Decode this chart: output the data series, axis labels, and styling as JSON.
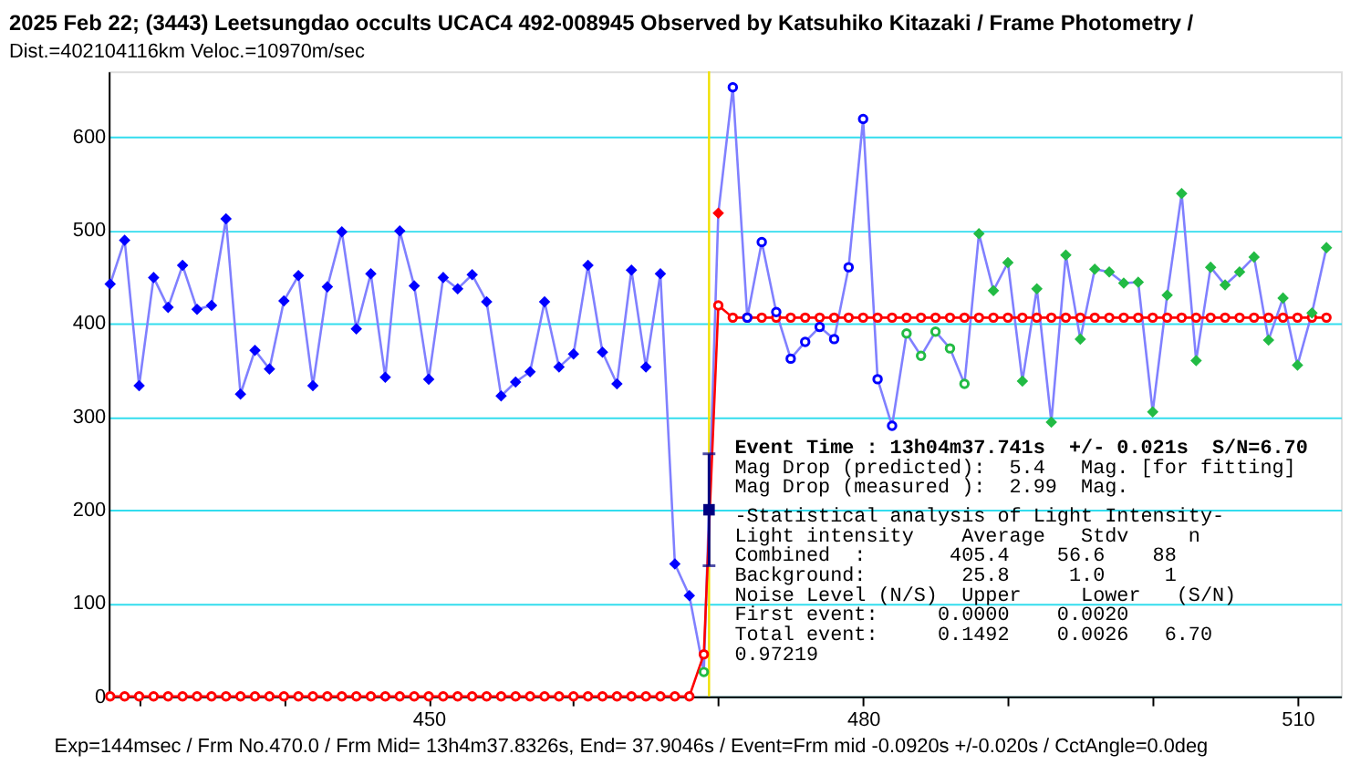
{
  "chart_data": {
    "type": "line",
    "title": "2025 Feb 22; (3443) Leetsungdao occults UCAC4 492-008945 Observed by Katsuhiko Kitazaki / Frame Photometry /",
    "subtitle": "Dist.=402104116km Veloc.=10970m/sec",
    "xlim": [
      427.9,
      513
    ],
    "ylim": [
      0,
      670
    ],
    "xticks": [
      {
        "value": 430,
        "label": null
      },
      {
        "value": 440,
        "label": null
      },
      450,
      {
        "value": 460,
        "label": null
      },
      {
        "value": 470,
        "label": null
      },
      480,
      {
        "value": 490,
        "label": null
      },
      {
        "value": 500,
        "label": null
      },
      510
    ],
    "yticks": [
      0,
      100,
      200,
      300,
      400,
      500,
      600
    ],
    "grid": "y",
    "series": [
      {
        "color": "#8080ff",
        "marker": "none",
        "x": [
          428,
          429,
          430,
          431,
          432,
          433,
          434,
          435,
          436,
          437,
          438,
          439,
          440,
          441,
          442,
          443,
          444,
          445,
          446,
          447,
          448,
          449,
          450,
          451,
          452,
          453,
          454,
          455,
          456,
          457,
          458,
          459,
          460,
          461,
          462,
          463,
          464,
          465,
          466,
          467,
          468,
          469,
          470,
          471,
          472,
          473,
          474,
          475,
          476,
          477,
          478,
          479,
          480,
          481,
          482,
          483,
          484,
          485,
          486,
          487,
          488,
          489,
          490,
          491,
          492,
          493,
          494,
          495,
          496,
          497,
          498,
          499,
          500,
          501,
          502,
          503,
          504,
          505,
          506,
          507,
          508,
          509,
          510,
          511,
          512
        ],
        "values": [
          442,
          489,
          333,
          449,
          417,
          462,
          415,
          419,
          512,
          324,
          371,
          351,
          424,
          451,
          333,
          439,
          498,
          394,
          453,
          342,
          499,
          440,
          340,
          449,
          437,
          452,
          423,
          322,
          337,
          348,
          423,
          353,
          367,
          462,
          369,
          335,
          457,
          353,
          453,
          142,
          108,
          26,
          518,
          653,
          406,
          487,
          412,
          362,
          380,
          396,
          383,
          460,
          619,
          340,
          290,
          389,
          365,
          391,
          373,
          335,
          496,
          435,
          465,
          338,
          437,
          294,
          473,
          383,
          458,
          455,
          443,
          444,
          305,
          430,
          539,
          360,
          460,
          441,
          455,
          471,
          382,
          427,
          355,
          411,
          481
        ]
      },
      {
        "color": "#ff0000",
        "marker": "circle",
        "x": [
          428,
          429,
          430,
          431,
          432,
          433,
          434,
          435,
          436,
          437,
          438,
          439,
          440,
          441,
          442,
          443,
          444,
          445,
          446,
          447,
          448,
          449,
          450,
          451,
          452,
          453,
          454,
          455,
          456,
          457,
          458,
          459,
          460,
          461,
          462,
          463,
          464,
          465,
          466,
          467,
          468,
          469,
          470,
          471,
          472,
          473,
          474,
          475,
          476,
          477,
          478,
          479,
          480,
          481,
          482,
          483,
          484,
          485,
          486,
          487,
          488,
          489,
          490,
          491,
          492,
          493,
          494,
          495,
          496,
          497,
          498,
          499,
          500,
          501,
          502,
          503,
          504,
          505,
          506,
          507,
          508,
          509,
          510,
          511,
          512
        ],
        "values": [
          0,
          0,
          0,
          0,
          0,
          0,
          0,
          0,
          0,
          0,
          0,
          0,
          0,
          0,
          0,
          0,
          0,
          0,
          0,
          0,
          0,
          0,
          0,
          0,
          0,
          0,
          0,
          0,
          0,
          0,
          0,
          0,
          0,
          0,
          0,
          0,
          0,
          0,
          0,
          0,
          0,
          45,
          419,
          406,
          406,
          406,
          406,
          406,
          406,
          406,
          406,
          406,
          406,
          406,
          406,
          406,
          406,
          406,
          406,
          406,
          406,
          406,
          406,
          406,
          406,
          406,
          406,
          406,
          406,
          406,
          406,
          406,
          406,
          406,
          406,
          406,
          406,
          406,
          406,
          406,
          406,
          406,
          406,
          406,
          406
        ]
      },
      {
        "type": "scatter",
        "color": "#0000ff",
        "marker": "diamond",
        "x": [
          428,
          429,
          430,
          431,
          432,
          433,
          434,
          435,
          436,
          437,
          438,
          439,
          440,
          441,
          442,
          443,
          444,
          445,
          446,
          447,
          448,
          449,
          450,
          451,
          452,
          453,
          454,
          455,
          456,
          457,
          458,
          459,
          460,
          461,
          462,
          463,
          464,
          465,
          466,
          467,
          468
        ],
        "values": [
          442,
          489,
          333,
          449,
          417,
          462,
          415,
          419,
          512,
          324,
          371,
          351,
          424,
          451,
          333,
          439,
          498,
          394,
          453,
          342,
          499,
          440,
          340,
          449,
          437,
          452,
          423,
          322,
          337,
          348,
          423,
          353,
          367,
          462,
          369,
          335,
          457,
          353,
          453,
          142,
          108
        ]
      },
      {
        "type": "scatter",
        "color": "#22bb44",
        "marker": "circle",
        "x": [
          469
        ],
        "values": [
          26
        ]
      },
      {
        "type": "scatter",
        "color": "#ff0000",
        "marker": "diamond",
        "x": [
          470
        ],
        "values": [
          518
        ]
      },
      {
        "type": "scatter",
        "color": "#0000ff",
        "marker": "circle",
        "x": [
          471,
          472,
          473,
          474,
          475,
          476,
          477,
          478,
          479,
          480,
          481,
          482
        ],
        "values": [
          653,
          406,
          487,
          412,
          362,
          380,
          396,
          383,
          460,
          619,
          340,
          290
        ]
      },
      {
        "type": "scatter",
        "color": "#22bb44",
        "marker": "circle",
        "x": [
          483,
          484,
          485,
          486,
          487
        ],
        "values": [
          389,
          365,
          391,
          373,
          335
        ]
      },
      {
        "type": "scatter",
        "color": "#22bb44",
        "marker": "diamond",
        "x": [
          488,
          489,
          490,
          491,
          492,
          493,
          494,
          495,
          496,
          497,
          498,
          499,
          500,
          501,
          502,
          503,
          504,
          505,
          506,
          507,
          508,
          509,
          510,
          511,
          512
        ],
        "values": [
          496,
          435,
          465,
          338,
          437,
          294,
          473,
          383,
          458,
          455,
          443,
          444,
          305,
          430,
          539,
          360,
          460,
          441,
          455,
          471,
          382,
          427,
          355,
          411,
          481
        ]
      },
      {
        "type": "scatter",
        "color": "#000080",
        "marker": "square",
        "x": [
          469.36
        ],
        "values": [
          200
        ],
        "errors": [
          [
            140,
            260
          ]
        ]
      }
    ],
    "ref_lines": [
      {
        "axis": "x",
        "value": 469.36,
        "color": "#f0e000"
      }
    ],
    "annotations": [
      "Event Time : 13h04m37.741s  +/- 0.021s  S/N=6.70",
      "Mag Drop (predicted):  5.4   Mag. [for fitting]",
      "Mag Drop (measured ):  2.99  Mag.",
      "-Statistical analysis of Light Intensity-",
      "Light intensity    Average   Stdv     n",
      "  Combined  :       405.4    56.6    88",
      "  Background:        25.8     1.0     1",
      "Noise Level (N/S)  Upper     Lower   (S/N)",
      "  First event:     0.0000    0.0020",
      "  Total event:     0.1492    0.0026   6.70",
      "0.97219",
      "Exp=144msec / Frm No.470.0 / Frm Mid= 13h4m37.8326s,  End= 37.9046s / Event=Frm mid -0.0920s +/-0.020s / CctAngle=0.0deg"
    ]
  }
}
